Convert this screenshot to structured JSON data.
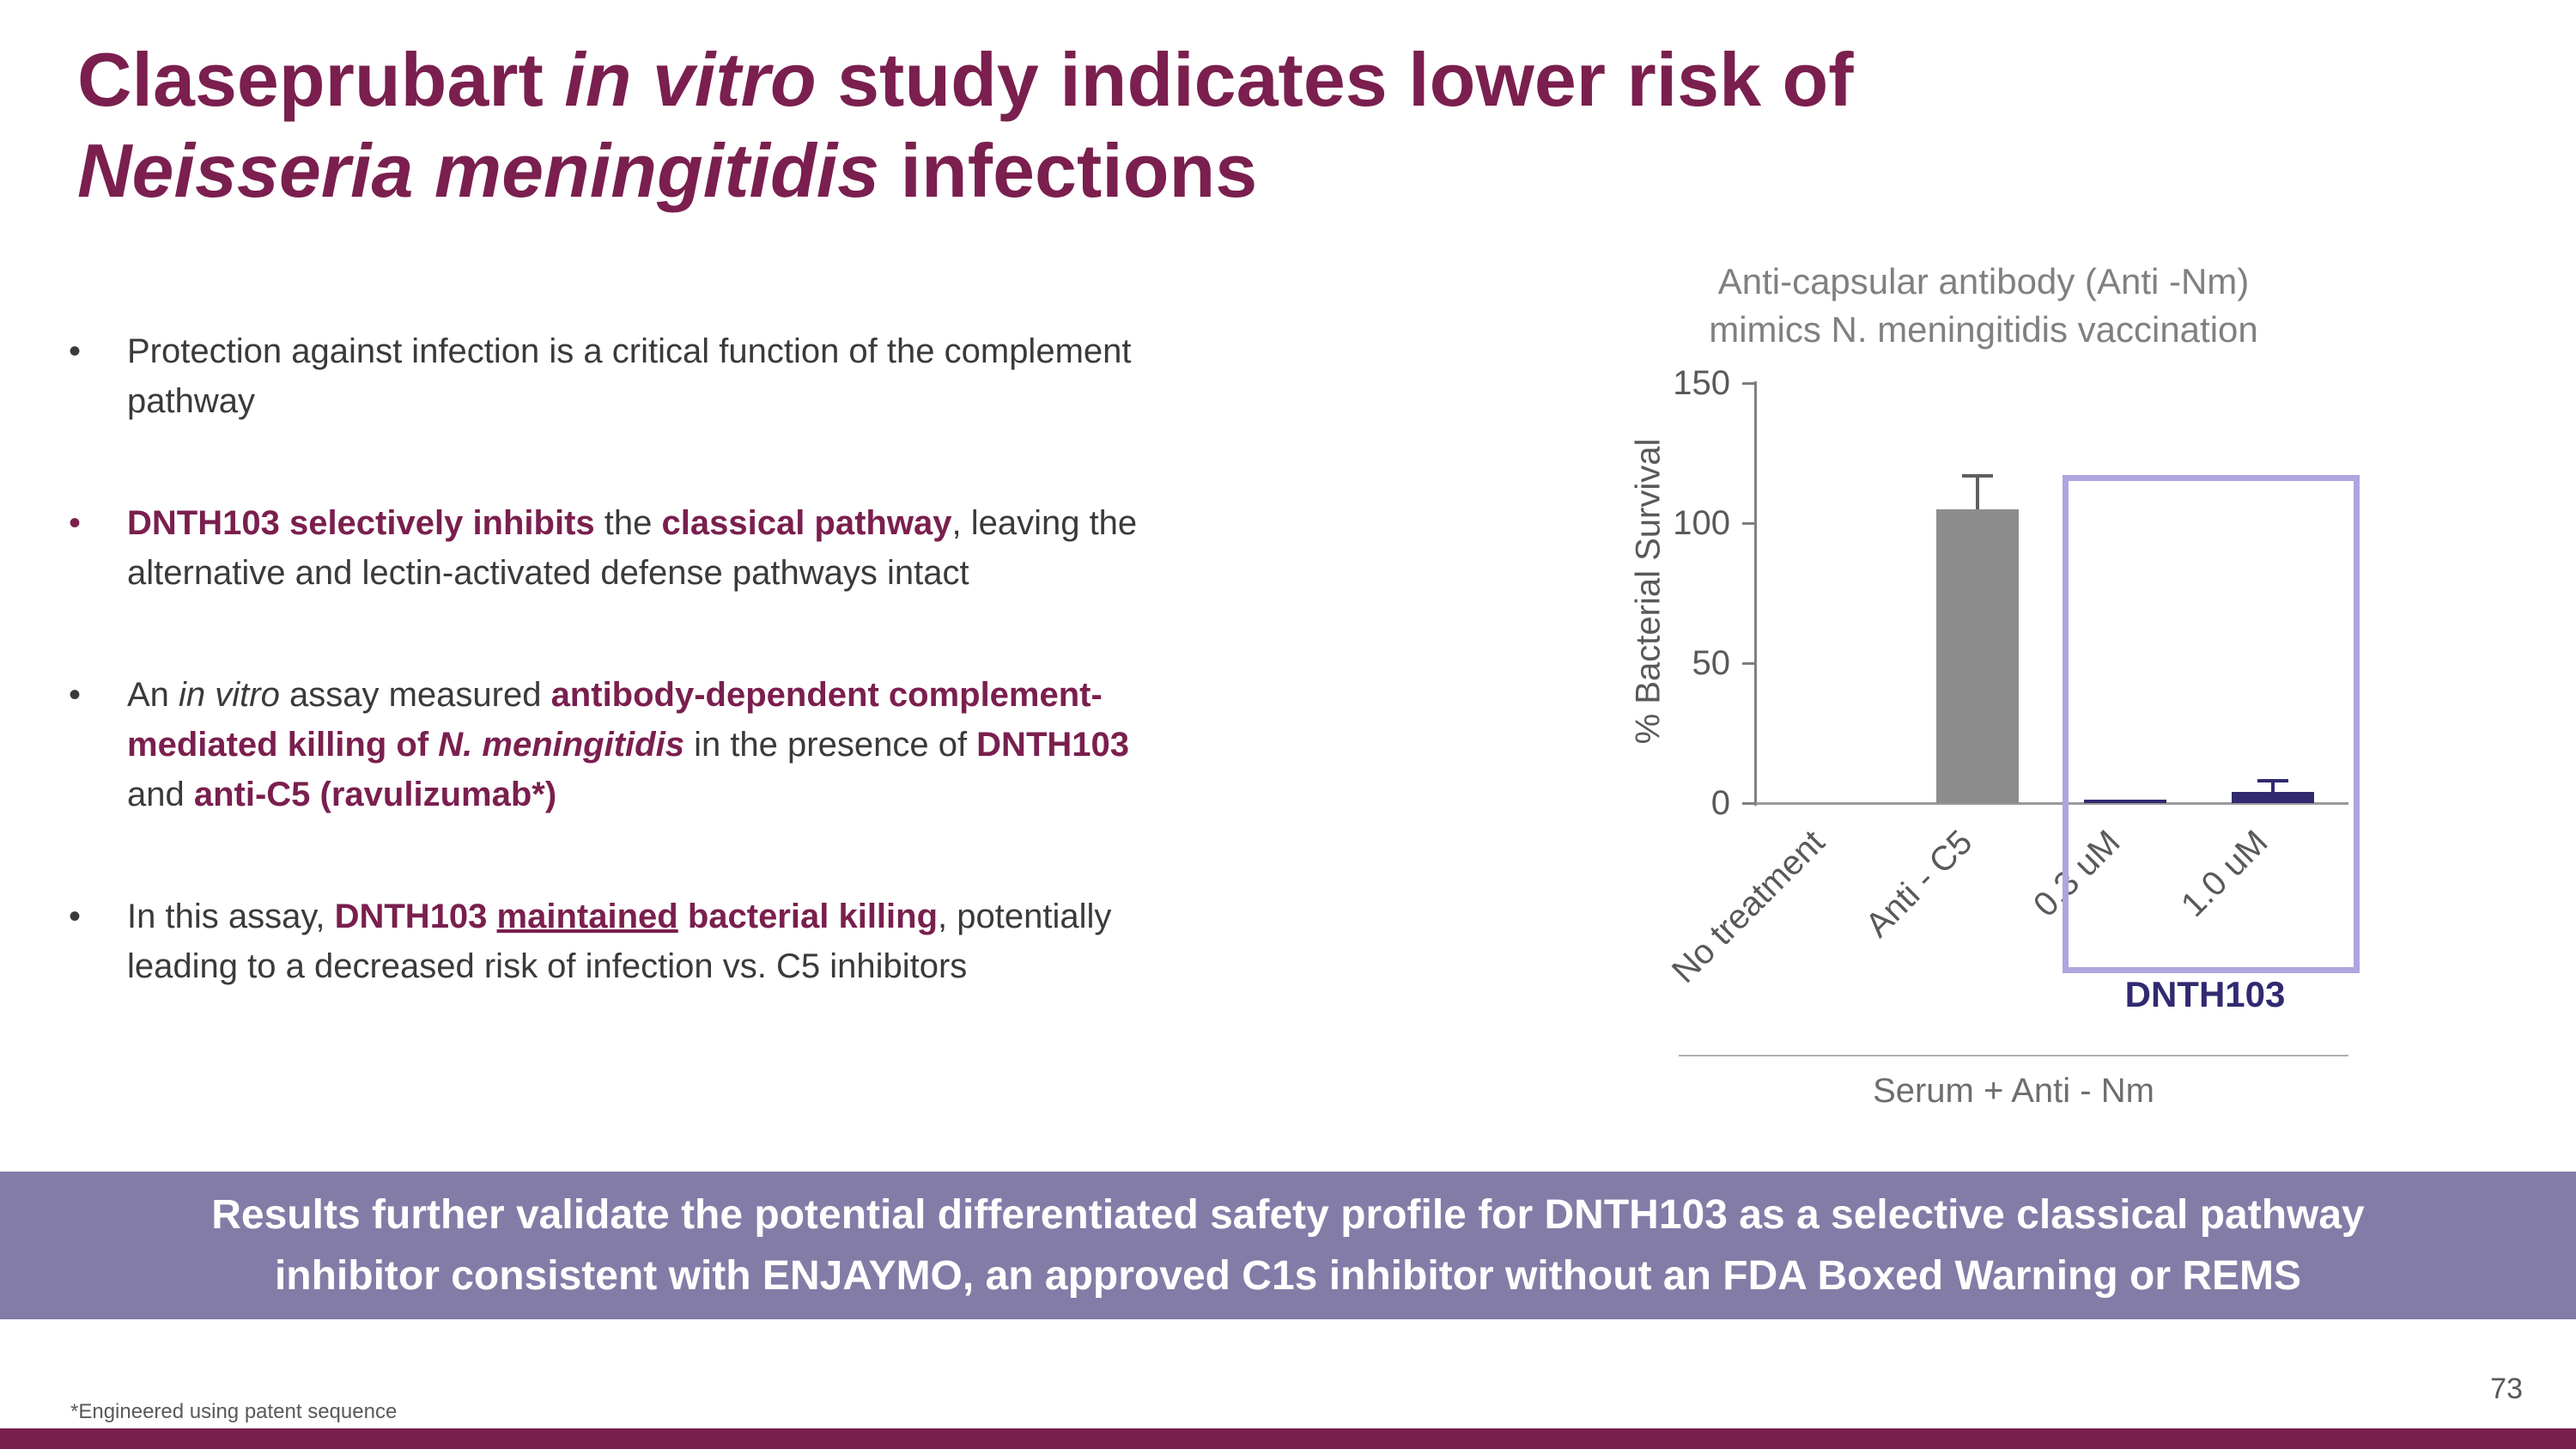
{
  "colors": {
    "accent_maroon": "#7A1F4E",
    "banner_purple": "#837CA7",
    "navy": "#312A70",
    "bar_gray": "#8C8C8C",
    "highlight_purple": "#ADA6DF",
    "text_dark": "#3A3A3A",
    "text_gray": "#6E6E6E"
  },
  "title": {
    "l1a": "Claseprubart ",
    "l1b": "in vitro",
    "l1c": " study indicates lower risk of",
    "l2a": "Neisseria meningitidis",
    "l2b": " infections"
  },
  "bullet_char": "•",
  "bullets": [
    {
      "marker_color": "#3A3A3A",
      "segments": [
        {
          "t": "Protection against infection is a critical function of the complement pathway"
        }
      ]
    },
    {
      "marker_color": "#7A1F4E",
      "segments": [
        {
          "t": "DNTH103 selectively inhibits",
          "b": true
        },
        {
          "t": " the "
        },
        {
          "t": "classical pathway",
          "b": true
        },
        {
          "t": ", leaving the alternative and lectin-activated defense pathways intact"
        }
      ]
    },
    {
      "marker_color": "#3A3A3A",
      "segments": [
        {
          "t": "An "
        },
        {
          "t": "in vitro",
          "i": true
        },
        {
          "t": " assay measured "
        },
        {
          "t": "antibody-dependent complement-mediated killing of ",
          "b": true
        },
        {
          "t": "N. meningitidis",
          "b": true,
          "i": true
        },
        {
          "t": " in the presence of "
        },
        {
          "t": "DNTH103",
          "b": true
        },
        {
          "t": " and "
        },
        {
          "t": "anti-C5 (ravulizumab*)",
          "b": true
        }
      ]
    },
    {
      "marker_color": "#3A3A3A",
      "segments": [
        {
          "t": "In this assay, "
        },
        {
          "t": "DNTH103 ",
          "b": true
        },
        {
          "t": "maintained",
          "b": true,
          "u": true
        },
        {
          "t": " bacterial killing",
          "b": true
        },
        {
          "t": ", potentially leading to a decreased risk of infection vs. C5 inhibitors"
        }
      ]
    }
  ],
  "chart_data": {
    "type": "bar",
    "title_lines": [
      "Anti-capsular antibody (Anti -Nm)",
      "mimics N. meningitidis vaccination"
    ],
    "ylabel": "% Bacterial Survival",
    "ylim": [
      0,
      150
    ],
    "yticks": [
      0,
      50,
      100,
      150
    ],
    "categories": [
      "No treatment",
      "Anti - C5",
      "0.3 uM",
      "1.0 uM"
    ],
    "values": [
      0,
      105,
      1,
      4
    ],
    "errors": [
      0,
      12,
      0,
      4
    ],
    "bar_colors": [
      "#8C8C8C",
      "#8C8C8C",
      "#312A70",
      "#312A70"
    ],
    "error_colors": [
      "#5F5F5F",
      "#5F5F5F",
      "#312A70",
      "#312A70"
    ],
    "highlight": {
      "label": "DNTH103",
      "start_category": "0.3 uM",
      "end_category": "1.0 uM"
    },
    "group_label": "Serum + Anti - Nm",
    "legend": "none",
    "grid": false
  },
  "banner": {
    "line1": "Results further validate the potential differentiated safety profile for DNTH103 as a selective classical pathway",
    "line2": "inhibitor consistent with ENJAYMO, an approved C1s inhibitor without an FDA Boxed Warning or REMS"
  },
  "footer": {
    "note": "*Engineered using patent sequence",
    "page": "73"
  }
}
